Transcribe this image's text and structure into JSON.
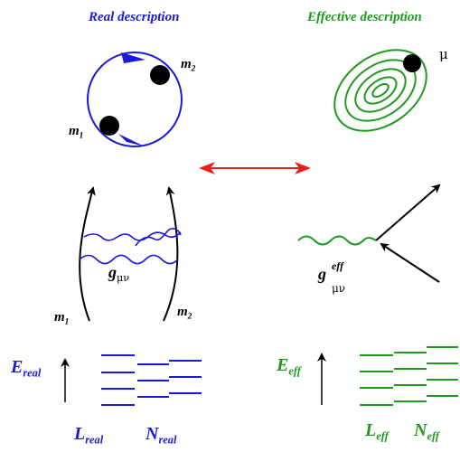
{
  "titles": {
    "real": "Real description",
    "effective": "Effective description"
  },
  "labels": {
    "m": "m",
    "one": "1",
    "two": "2",
    "g": "g",
    "mu_nu": "μν",
    "eff": "eff",
    "mu": "μ",
    "E": "E",
    "L": "L",
    "N": "N",
    "real": "real"
  },
  "colors": {
    "blue": "#1a1adb",
    "green": "#1f9a1f",
    "red": "#e8201c",
    "black": "#000000"
  }
}
